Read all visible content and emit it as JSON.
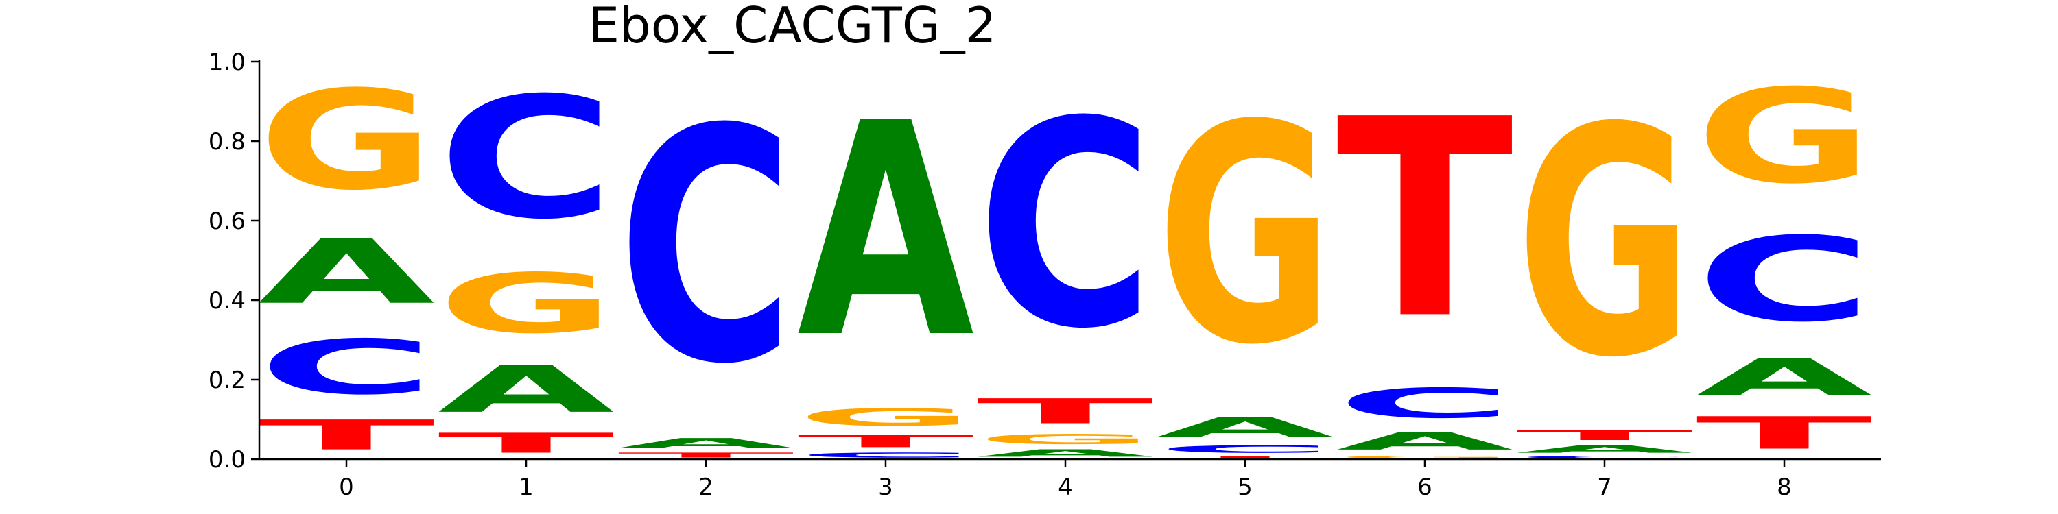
{
  "chart_data": {
    "type": "sequence-logo",
    "title": "Ebox_CACGTG_2",
    "xlabel": "",
    "ylabel": "",
    "ylim": [
      0.0,
      1.0
    ],
    "yticks": [
      "0.0",
      "0.2",
      "0.4",
      "0.6",
      "0.8",
      "1.0"
    ],
    "grid": false,
    "colors": {
      "A": "#008000",
      "C": "#0000ff",
      "G": "#ffa500",
      "T": "#ff0000"
    },
    "positions": [
      {
        "label": "0",
        "stack": [
          {
            "base": "T",
            "value": 0.12
          },
          {
            "base": "C",
            "value": 0.22
          },
          {
            "base": "A",
            "value": 0.26
          },
          {
            "base": "G",
            "value": 0.4
          }
        ]
      },
      {
        "label": "1",
        "stack": [
          {
            "base": "T",
            "value": 0.08
          },
          {
            "base": "A",
            "value": 0.19
          },
          {
            "base": "G",
            "value": 0.24
          },
          {
            "base": "C",
            "value": 0.49
          }
        ]
      },
      {
        "label": "2",
        "stack": [
          {
            "base": "T",
            "value": 0.02
          },
          {
            "base": "A",
            "value": 0.04
          },
          {
            "base": "C",
            "value": 0.94
          }
        ]
      },
      {
        "label": "3",
        "stack": [
          {
            "base": "C",
            "value": 0.02
          },
          {
            "base": "T",
            "value": 0.05
          },
          {
            "base": "G",
            "value": 0.07
          },
          {
            "base": "A",
            "value": 0.86
          }
        ]
      },
      {
        "label": "4",
        "stack": [
          {
            "base": "A",
            "value": 0.03
          },
          {
            "base": "G",
            "value": 0.04
          },
          {
            "base": "T",
            "value": 0.1
          },
          {
            "base": "C",
            "value": 0.83
          }
        ]
      },
      {
        "label": "5",
        "stack": [
          {
            "base": "T",
            "value": 0.01
          },
          {
            "base": "C",
            "value": 0.03
          },
          {
            "base": "A",
            "value": 0.08
          },
          {
            "base": "G",
            "value": 0.88
          }
        ]
      },
      {
        "label": "6",
        "stack": [
          {
            "base": "G",
            "value": 0.01
          },
          {
            "base": "A",
            "value": 0.07
          },
          {
            "base": "C",
            "value": 0.12
          },
          {
            "base": "T",
            "value": 0.8
          }
        ]
      },
      {
        "label": "7",
        "stack": [
          {
            "base": "C",
            "value": 0.01
          },
          {
            "base": "A",
            "value": 0.03
          },
          {
            "base": "T",
            "value": 0.04
          },
          {
            "base": "G",
            "value": 0.92
          }
        ]
      },
      {
        "label": "8",
        "stack": [
          {
            "base": "T",
            "value": 0.13
          },
          {
            "base": "A",
            "value": 0.15
          },
          {
            "base": "C",
            "value": 0.34
          },
          {
            "base": "G",
            "value": 0.38
          }
        ]
      }
    ]
  }
}
